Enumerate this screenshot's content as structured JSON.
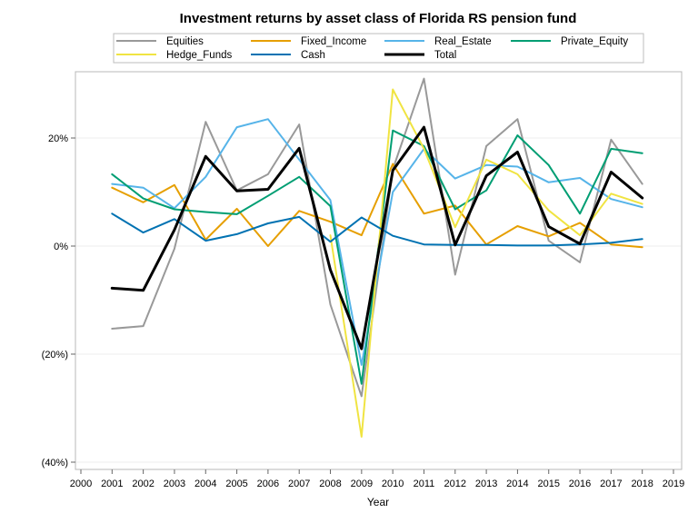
{
  "chart_data": {
    "type": "line",
    "title": "Investment returns by asset class of Florida RS pension fund",
    "xlabel": "Year",
    "ylabel": "",
    "x_ticks": [
      "2000",
      "2001",
      "2002",
      "2003",
      "2004",
      "2005",
      "2006",
      "2007",
      "2008",
      "2009",
      "2010",
      "2011",
      "2012",
      "2013",
      "2014",
      "2015",
      "2016",
      "2017",
      "2018",
      "2019"
    ],
    "y_ticks": [
      {
        "value": 0.2,
        "label": "20%"
      },
      {
        "value": 0.0,
        "label": "0%"
      },
      {
        "value": -0.2,
        "label": "(20%)"
      },
      {
        "value": -0.4,
        "label": "(40%)"
      }
    ],
    "xlim": [
      2000,
      2019
    ],
    "ylim": [
      -0.4,
      0.31
    ],
    "grid": "horizontal",
    "legend_position": "top",
    "x": [
      2001,
      2002,
      2003,
      2004,
      2005,
      2006,
      2007,
      2008,
      2009,
      2010,
      2011,
      2012,
      2013,
      2014,
      2015,
      2016,
      2017,
      2018
    ],
    "series": [
      {
        "name": "Equities",
        "color": "#999999",
        "width": 2,
        "values": [
          -0.153,
          -0.148,
          -0.005,
          0.23,
          0.103,
          0.133,
          0.225,
          -0.108,
          -0.278,
          0.142,
          0.31,
          -0.053,
          0.185,
          0.235,
          0.01,
          -0.03,
          0.197,
          0.115
        ]
      },
      {
        "name": "Fixed_Income",
        "color": "#E69F00",
        "width": 2,
        "values": [
          0.108,
          0.081,
          0.113,
          0.012,
          0.069,
          0.0,
          0.065,
          0.045,
          0.02,
          0.152,
          0.06,
          0.075,
          0.003,
          0.037,
          0.018,
          0.043,
          0.003,
          -0.002
        ]
      },
      {
        "name": "Real_Estate",
        "color": "#56B4E9",
        "width": 2,
        "values": [
          0.115,
          0.108,
          0.07,
          0.128,
          0.22,
          0.235,
          0.16,
          0.085,
          -0.22,
          0.1,
          0.18,
          0.125,
          0.15,
          0.147,
          0.118,
          0.126,
          0.087,
          0.072
        ]
      },
      {
        "name": "Private_Equity",
        "color": "#009E73",
        "width": 2,
        "values": [
          0.133,
          0.088,
          0.068,
          0.063,
          0.059,
          0.093,
          0.128,
          0.074,
          -0.255,
          0.214,
          0.185,
          0.068,
          0.103,
          0.205,
          0.15,
          0.06,
          0.18,
          0.172
        ]
      },
      {
        "name": "Hedge_Funds",
        "color": "#F0E442",
        "width": 2,
        "values": [
          null,
          null,
          null,
          null,
          null,
          null,
          null,
          0.02,
          -0.353,
          0.29,
          0.18,
          0.035,
          0.16,
          0.133,
          0.066,
          0.02,
          0.097,
          0.078
        ]
      },
      {
        "name": "Cash",
        "color": "#0072B2",
        "width": 2,
        "values": [
          0.06,
          0.025,
          0.05,
          0.01,
          0.022,
          0.042,
          0.054,
          0.008,
          0.053,
          0.019,
          0.003,
          0.002,
          0.002,
          0.001,
          0.001,
          0.003,
          0.006,
          0.013
        ]
      },
      {
        "name": "Total",
        "color": "#000000",
        "width": 3,
        "values": [
          -0.078,
          -0.082,
          0.03,
          0.166,
          0.102,
          0.105,
          0.181,
          -0.044,
          -0.19,
          0.14,
          0.22,
          0.002,
          0.13,
          0.174,
          0.036,
          0.004,
          0.137,
          0.089
        ]
      }
    ]
  }
}
